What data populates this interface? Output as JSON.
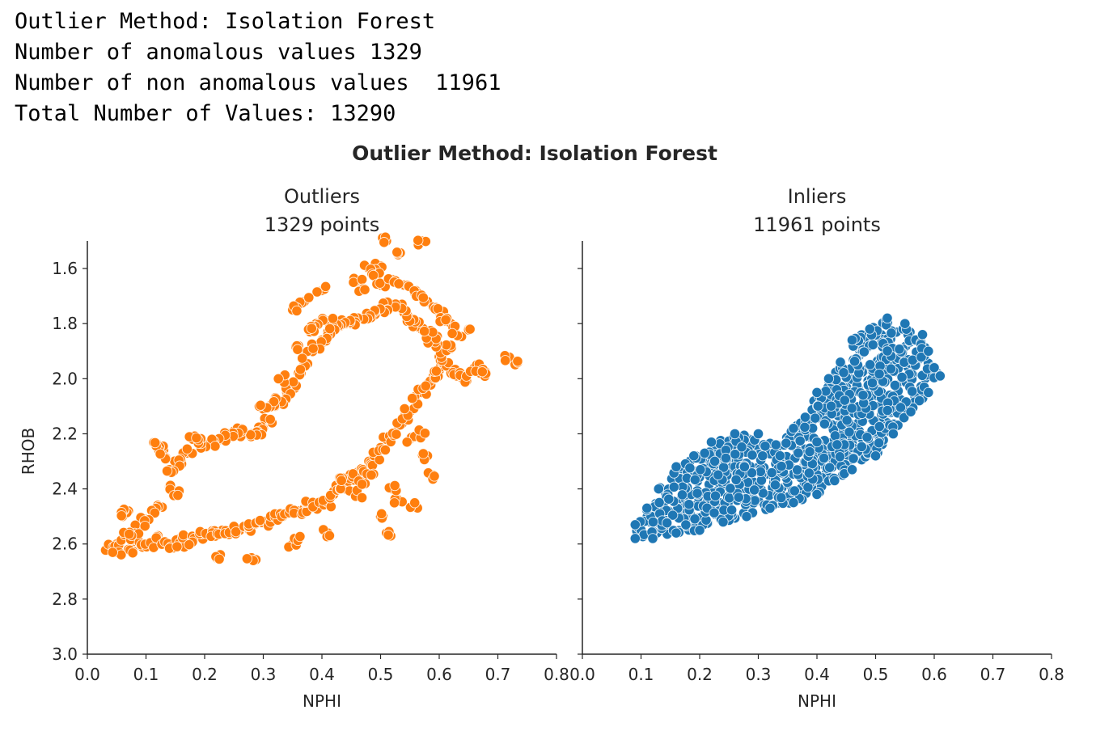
{
  "console_output": [
    "Outlier Method: Isolation Forest",
    "Number of anomalous values 1329",
    "Number of non anomalous values  11961",
    "Total Number of Values: 13290"
  ],
  "figure": {
    "suptitle": "Outlier Method: Isolation Forest"
  },
  "chart_data": [
    {
      "type": "scatter",
      "title": "Outliers\n1329 points",
      "title_lines": [
        "Outliers",
        "1329 points"
      ],
      "xlabel": "NPHI",
      "ylabel": "RHOB",
      "xlim": [
        0.0,
        0.8
      ],
      "ylim": [
        3.0,
        1.5
      ],
      "y_inverted": true,
      "xticks": [
        "0.0",
        "0.1",
        "0.2",
        "0.3",
        "0.4",
        "0.5",
        "0.6",
        "0.7",
        "0.8"
      ],
      "yticks": [
        "1.6",
        "1.8",
        "2.0",
        "2.2",
        "2.4",
        "2.6",
        "2.8",
        "3.0"
      ],
      "grid": false,
      "point_count": 1329,
      "color": "#ff7f0e",
      "series": [
        {
          "name": "Outliers",
          "color": "#ff7f0e",
          "points": [
            [
              0.04,
              2.61
            ],
            [
              0.05,
              2.6
            ],
            [
              0.06,
              2.58
            ],
            [
              0.05,
              2.63
            ],
            [
              0.07,
              2.62
            ],
            [
              0.08,
              2.59
            ],
            [
              0.09,
              2.6
            ],
            [
              0.1,
              2.61
            ],
            [
              0.11,
              2.6
            ],
            [
              0.12,
              2.58
            ],
            [
              0.13,
              2.6
            ],
            [
              0.14,
              2.61
            ],
            [
              0.15,
              2.59
            ],
            [
              0.16,
              2.6
            ],
            [
              0.17,
              2.58
            ],
            [
              0.18,
              2.59
            ],
            [
              0.19,
              2.57
            ],
            [
              0.2,
              2.57
            ],
            [
              0.21,
              2.56
            ],
            [
              0.22,
              2.56
            ],
            [
              0.23,
              2.55
            ],
            [
              0.24,
              2.56
            ],
            [
              0.25,
              2.55
            ],
            [
              0.26,
              2.55
            ],
            [
              0.27,
              2.54
            ],
            [
              0.28,
              2.53
            ],
            [
              0.29,
              2.52
            ],
            [
              0.3,
              2.52
            ],
            [
              0.31,
              2.51
            ],
            [
              0.32,
              2.5
            ],
            [
              0.33,
              2.5
            ],
            [
              0.34,
              2.49
            ],
            [
              0.35,
              2.48
            ],
            [
              0.36,
              2.48
            ],
            [
              0.37,
              2.47
            ],
            [
              0.38,
              2.46
            ],
            [
              0.39,
              2.46
            ],
            [
              0.4,
              2.45
            ],
            [
              0.41,
              2.45
            ],
            [
              0.42,
              2.42
            ],
            [
              0.43,
              2.4
            ],
            [
              0.44,
              2.38
            ],
            [
              0.45,
              2.36
            ],
            [
              0.46,
              2.34
            ],
            [
              0.47,
              2.33
            ],
            [
              0.48,
              2.3
            ],
            [
              0.49,
              2.28
            ],
            [
              0.5,
              2.25
            ],
            [
              0.51,
              2.22
            ],
            [
              0.52,
              2.2
            ],
            [
              0.53,
              2.17
            ],
            [
              0.54,
              2.14
            ],
            [
              0.55,
              2.12
            ],
            [
              0.56,
              2.08
            ],
            [
              0.57,
              2.05
            ],
            [
              0.58,
              2.02
            ],
            [
              0.59,
              1.99
            ],
            [
              0.6,
              1.97
            ],
            [
              0.61,
              1.95
            ],
            [
              0.62,
              1.98
            ],
            [
              0.63,
              1.99
            ],
            [
              0.64,
              2.0
            ],
            [
              0.66,
              1.96
            ],
            [
              0.67,
              1.98
            ],
            [
              0.68,
              1.98
            ],
            [
              0.72,
              1.93
            ],
            [
              0.73,
              1.94
            ],
            [
              0.6,
              1.92
            ],
            [
              0.61,
              1.9
            ],
            [
              0.62,
              1.89
            ],
            [
              0.6,
              1.88
            ],
            [
              0.59,
              1.86
            ],
            [
              0.58,
              1.84
            ],
            [
              0.57,
              1.82
            ],
            [
              0.56,
              1.8
            ],
            [
              0.55,
              1.78
            ],
            [
              0.54,
              1.76
            ],
            [
              0.53,
              1.74
            ],
            [
              0.52,
              1.73
            ],
            [
              0.51,
              1.74
            ],
            [
              0.5,
              1.75
            ],
            [
              0.49,
              1.76
            ],
            [
              0.48,
              1.77
            ],
            [
              0.47,
              1.78
            ],
            [
              0.46,
              1.79
            ],
            [
              0.45,
              1.8
            ],
            [
              0.44,
              1.8
            ],
            [
              0.43,
              1.81
            ],
            [
              0.42,
              1.82
            ],
            [
              0.41,
              1.83
            ],
            [
              0.4,
              1.86
            ],
            [
              0.39,
              1.88
            ],
            [
              0.38,
              1.9
            ],
            [
              0.37,
              1.94
            ],
            [
              0.36,
              1.98
            ],
            [
              0.35,
              2.02
            ],
            [
              0.34,
              2.05
            ],
            [
              0.33,
              2.08
            ],
            [
              0.32,
              2.1
            ],
            [
              0.31,
              2.15
            ],
            [
              0.3,
              2.18
            ],
            [
              0.29,
              2.19
            ],
            [
              0.28,
              2.2
            ],
            [
              0.27,
              2.2
            ],
            [
              0.26,
              2.19
            ],
            [
              0.25,
              2.19
            ],
            [
              0.24,
              2.21
            ],
            [
              0.23,
              2.22
            ],
            [
              0.22,
              2.23
            ],
            [
              0.21,
              2.23
            ],
            [
              0.2,
              2.24
            ],
            [
              0.19,
              2.22
            ],
            [
              0.18,
              2.22
            ],
            [
              0.17,
              2.27
            ],
            [
              0.16,
              2.3
            ],
            [
              0.15,
              2.31
            ],
            [
              0.14,
              2.33
            ],
            [
              0.13,
              2.26
            ],
            [
              0.12,
              2.24
            ],
            [
              0.13,
              2.28
            ],
            [
              0.14,
              2.39
            ],
            [
              0.15,
              2.41
            ],
            [
              0.12,
              2.46
            ],
            [
              0.11,
              2.48
            ],
            [
              0.1,
              2.51
            ],
            [
              0.09,
              2.53
            ],
            [
              0.08,
              2.55
            ],
            [
              0.07,
              2.48
            ],
            [
              0.06,
              2.5
            ],
            [
              0.07,
              2.56
            ],
            [
              0.51,
              1.5
            ],
            [
              0.57,
              1.5
            ],
            [
              0.53,
              1.55
            ],
            [
              0.5,
              1.59
            ],
            [
              0.48,
              1.6
            ],
            [
              0.49,
              1.63
            ],
            [
              0.46,
              1.65
            ],
            [
              0.47,
              1.67
            ],
            [
              0.5,
              1.66
            ],
            [
              0.52,
              1.64
            ],
            [
              0.54,
              1.66
            ],
            [
              0.56,
              1.68
            ],
            [
              0.57,
              1.7
            ],
            [
              0.58,
              1.72
            ],
            [
              0.59,
              1.74
            ],
            [
              0.6,
              1.76
            ],
            [
              0.61,
              1.79
            ],
            [
              0.62,
              1.8
            ],
            [
              0.63,
              1.84
            ],
            [
              0.65,
              1.82
            ],
            [
              0.4,
              1.68
            ],
            [
              0.41,
              1.79
            ],
            [
              0.39,
              1.8
            ],
            [
              0.38,
              1.83
            ],
            [
              0.37,
              1.72
            ],
            [
              0.35,
              1.75
            ],
            [
              0.36,
              1.88
            ],
            [
              0.33,
              2.0
            ],
            [
              0.32,
              2.08
            ],
            [
              0.3,
              2.11
            ],
            [
              0.28,
              2.65
            ],
            [
              0.22,
              2.65
            ],
            [
              0.35,
              2.6
            ],
            [
              0.36,
              2.58
            ],
            [
              0.41,
              2.56
            ],
            [
              0.51,
              2.56
            ],
            [
              0.5,
              2.5
            ],
            [
              0.53,
              2.44
            ],
            [
              0.52,
              2.4
            ],
            [
              0.56,
              2.46
            ],
            [
              0.59,
              2.35
            ],
            [
              0.58,
              2.28
            ],
            [
              0.55,
              2.22
            ],
            [
              0.57,
              2.2
            ],
            [
              0.45,
              2.35
            ],
            [
              0.44,
              2.4
            ],
            [
              0.46,
              2.42
            ],
            [
              0.43,
              2.36
            ],
            [
              0.48,
              2.34
            ],
            [
              0.47,
              2.37
            ]
          ]
        }
      ]
    },
    {
      "type": "scatter",
      "title": "Inliers\n11961 points",
      "title_lines": [
        "Inliers",
        "11961 points"
      ],
      "xlabel": "NPHI",
      "ylabel": "",
      "xlim": [
        0.0,
        0.8
      ],
      "ylim": [
        3.0,
        1.5
      ],
      "y_inverted": true,
      "xticks": [
        "0.0",
        "0.1",
        "0.2",
        "0.3",
        "0.4",
        "0.5",
        "0.6",
        "0.7",
        "0.8"
      ],
      "yticks": [],
      "grid": false,
      "point_count": 11961,
      "color": "#1f77b4",
      "series": [
        {
          "name": "Inliers",
          "color": "#1f77b4",
          "region_outline": [
            [
              0.09,
              2.58
            ],
            [
              0.09,
              2.53
            ],
            [
              0.11,
              2.47
            ],
            [
              0.13,
              2.4
            ],
            [
              0.16,
              2.32
            ],
            [
              0.19,
              2.28
            ],
            [
              0.22,
              2.23
            ],
            [
              0.26,
              2.2
            ],
            [
              0.3,
              2.2
            ],
            [
              0.33,
              2.24
            ],
            [
              0.36,
              2.18
            ],
            [
              0.38,
              2.14
            ],
            [
              0.4,
              2.05
            ],
            [
              0.42,
              2.0
            ],
            [
              0.44,
              1.94
            ],
            [
              0.46,
              1.86
            ],
            [
              0.49,
              1.82
            ],
            [
              0.52,
              1.78
            ],
            [
              0.55,
              1.8
            ],
            [
              0.58,
              1.84
            ],
            [
              0.59,
              1.9
            ],
            [
              0.6,
              1.96
            ],
            [
              0.61,
              1.99
            ],
            [
              0.59,
              2.05
            ],
            [
              0.56,
              2.12
            ],
            [
              0.53,
              2.2
            ],
            [
              0.5,
              2.28
            ],
            [
              0.46,
              2.33
            ],
            [
              0.43,
              2.37
            ],
            [
              0.4,
              2.42
            ],
            [
              0.36,
              2.45
            ],
            [
              0.32,
              2.47
            ],
            [
              0.28,
              2.5
            ],
            [
              0.24,
              2.52
            ],
            [
              0.2,
              2.55
            ],
            [
              0.16,
              2.56
            ],
            [
              0.12,
              2.58
            ]
          ]
        }
      ]
    }
  ]
}
